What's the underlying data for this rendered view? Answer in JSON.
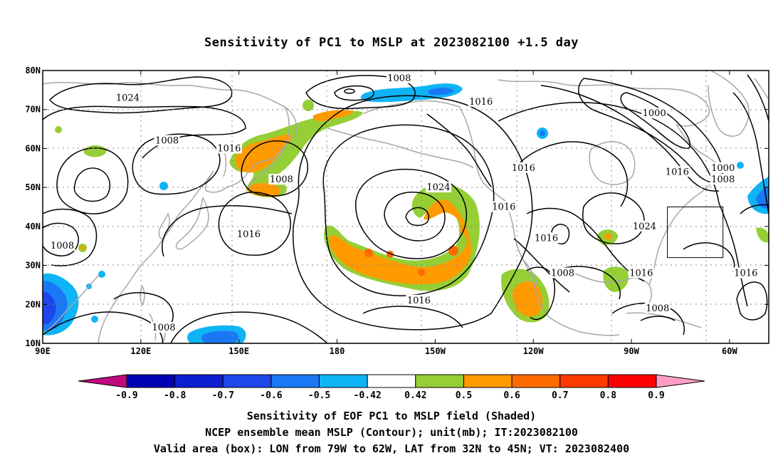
{
  "title": "Sensitivity of PC1 to MSLP at 2023082100 +1.5 day",
  "map": {
    "lon_range": [
      90,
      312
    ],
    "lat_range": [
      10,
      80
    ],
    "lat_ticks": [
      {
        "lat": 80,
        "label": "80N"
      },
      {
        "lat": 70,
        "label": "70N"
      },
      {
        "lat": 60,
        "label": "60N"
      },
      {
        "lat": 50,
        "label": "50N"
      },
      {
        "lat": 40,
        "label": "40N"
      },
      {
        "lat": 30,
        "label": "30N"
      },
      {
        "lat": 20,
        "label": "20N"
      },
      {
        "lat": 10,
        "label": "10N"
      }
    ],
    "lon_ticks": [
      {
        "lon": 90,
        "label": "90E"
      },
      {
        "lon": 120,
        "label": "120E"
      },
      {
        "lon": 150,
        "label": "150E"
      },
      {
        "lon": 180,
        "label": "180"
      },
      {
        "lon": 210,
        "label": "150W"
      },
      {
        "lon": 240,
        "label": "120W"
      },
      {
        "lon": 270,
        "label": "90W"
      },
      {
        "lon": 300,
        "label": "60W"
      }
    ],
    "grid": "dotted",
    "valid_box": {
      "lon_min": 281,
      "lon_max": 298,
      "lat_min": 32,
      "lat_max": 45
    },
    "contour_labels": [
      {
        "text": "1024",
        "lon": 116,
        "lat": 73
      },
      {
        "text": "1008",
        "lon": 199,
        "lat": 78
      },
      {
        "text": "1016",
        "lon": 224,
        "lat": 72
      },
      {
        "text": "1000",
        "lon": 277,
        "lat": 69
      },
      {
        "text": "1008",
        "lon": 128,
        "lat": 62
      },
      {
        "text": "1016",
        "lon": 147,
        "lat": 60
      },
      {
        "text": "1008",
        "lon": 163,
        "lat": 52
      },
      {
        "text": "1016",
        "lon": 237,
        "lat": 55
      },
      {
        "text": "1016",
        "lon": 284,
        "lat": 54
      },
      {
        "text": "1000",
        "lon": 298,
        "lat": 55
      },
      {
        "text": "1008",
        "lon": 298,
        "lat": 52
      },
      {
        "text": "1024",
        "lon": 211,
        "lat": 50
      },
      {
        "text": "1016",
        "lon": 231,
        "lat": 45
      },
      {
        "text": "1016",
        "lon": 153,
        "lat": 38
      },
      {
        "text": "1024",
        "lon": 274,
        "lat": 40
      },
      {
        "text": "1008",
        "lon": 96,
        "lat": 35
      },
      {
        "text": "1016",
        "lon": 244,
        "lat": 37
      },
      {
        "text": "1008",
        "lon": 249,
        "lat": 28
      },
      {
        "text": "1016",
        "lon": 273,
        "lat": 28
      },
      {
        "text": "1016",
        "lon": 305,
        "lat": 28
      },
      {
        "text": "1016",
        "lon": 205,
        "lat": 21
      },
      {
        "text": "1008",
        "lon": 278,
        "lat": 19
      },
      {
        "text": "1008",
        "lon": 127,
        "lat": 14
      }
    ]
  },
  "colorbar": {
    "labels": [
      "-0.9",
      "-0.8",
      "-0.7",
      "-0.6",
      "-0.5",
      "-0.42",
      "0.42",
      "0.5",
      "0.6",
      "0.7",
      "0.8",
      "0.9"
    ],
    "colors": [
      "#c2087f",
      "#0000b4",
      "#0e1fd2",
      "#1e46ea",
      "#1a78f5",
      "#0fb4f5",
      "#ffffff",
      "#95cf35",
      "#ff9a00",
      "#ff6a00",
      "#ff3a00",
      "#ff0000",
      "#ff9dc8"
    ]
  },
  "footer": {
    "line1": "Sensitivity of EOF PC1 to MSLP field (Shaded)",
    "line2": "NCEP ensemble mean MSLP (Contour); unit(mb); IT:2023082100",
    "line3": "Valid area (box): LON from 79W to 62W, LAT from 32N to 45N; VT: 2023082400"
  }
}
